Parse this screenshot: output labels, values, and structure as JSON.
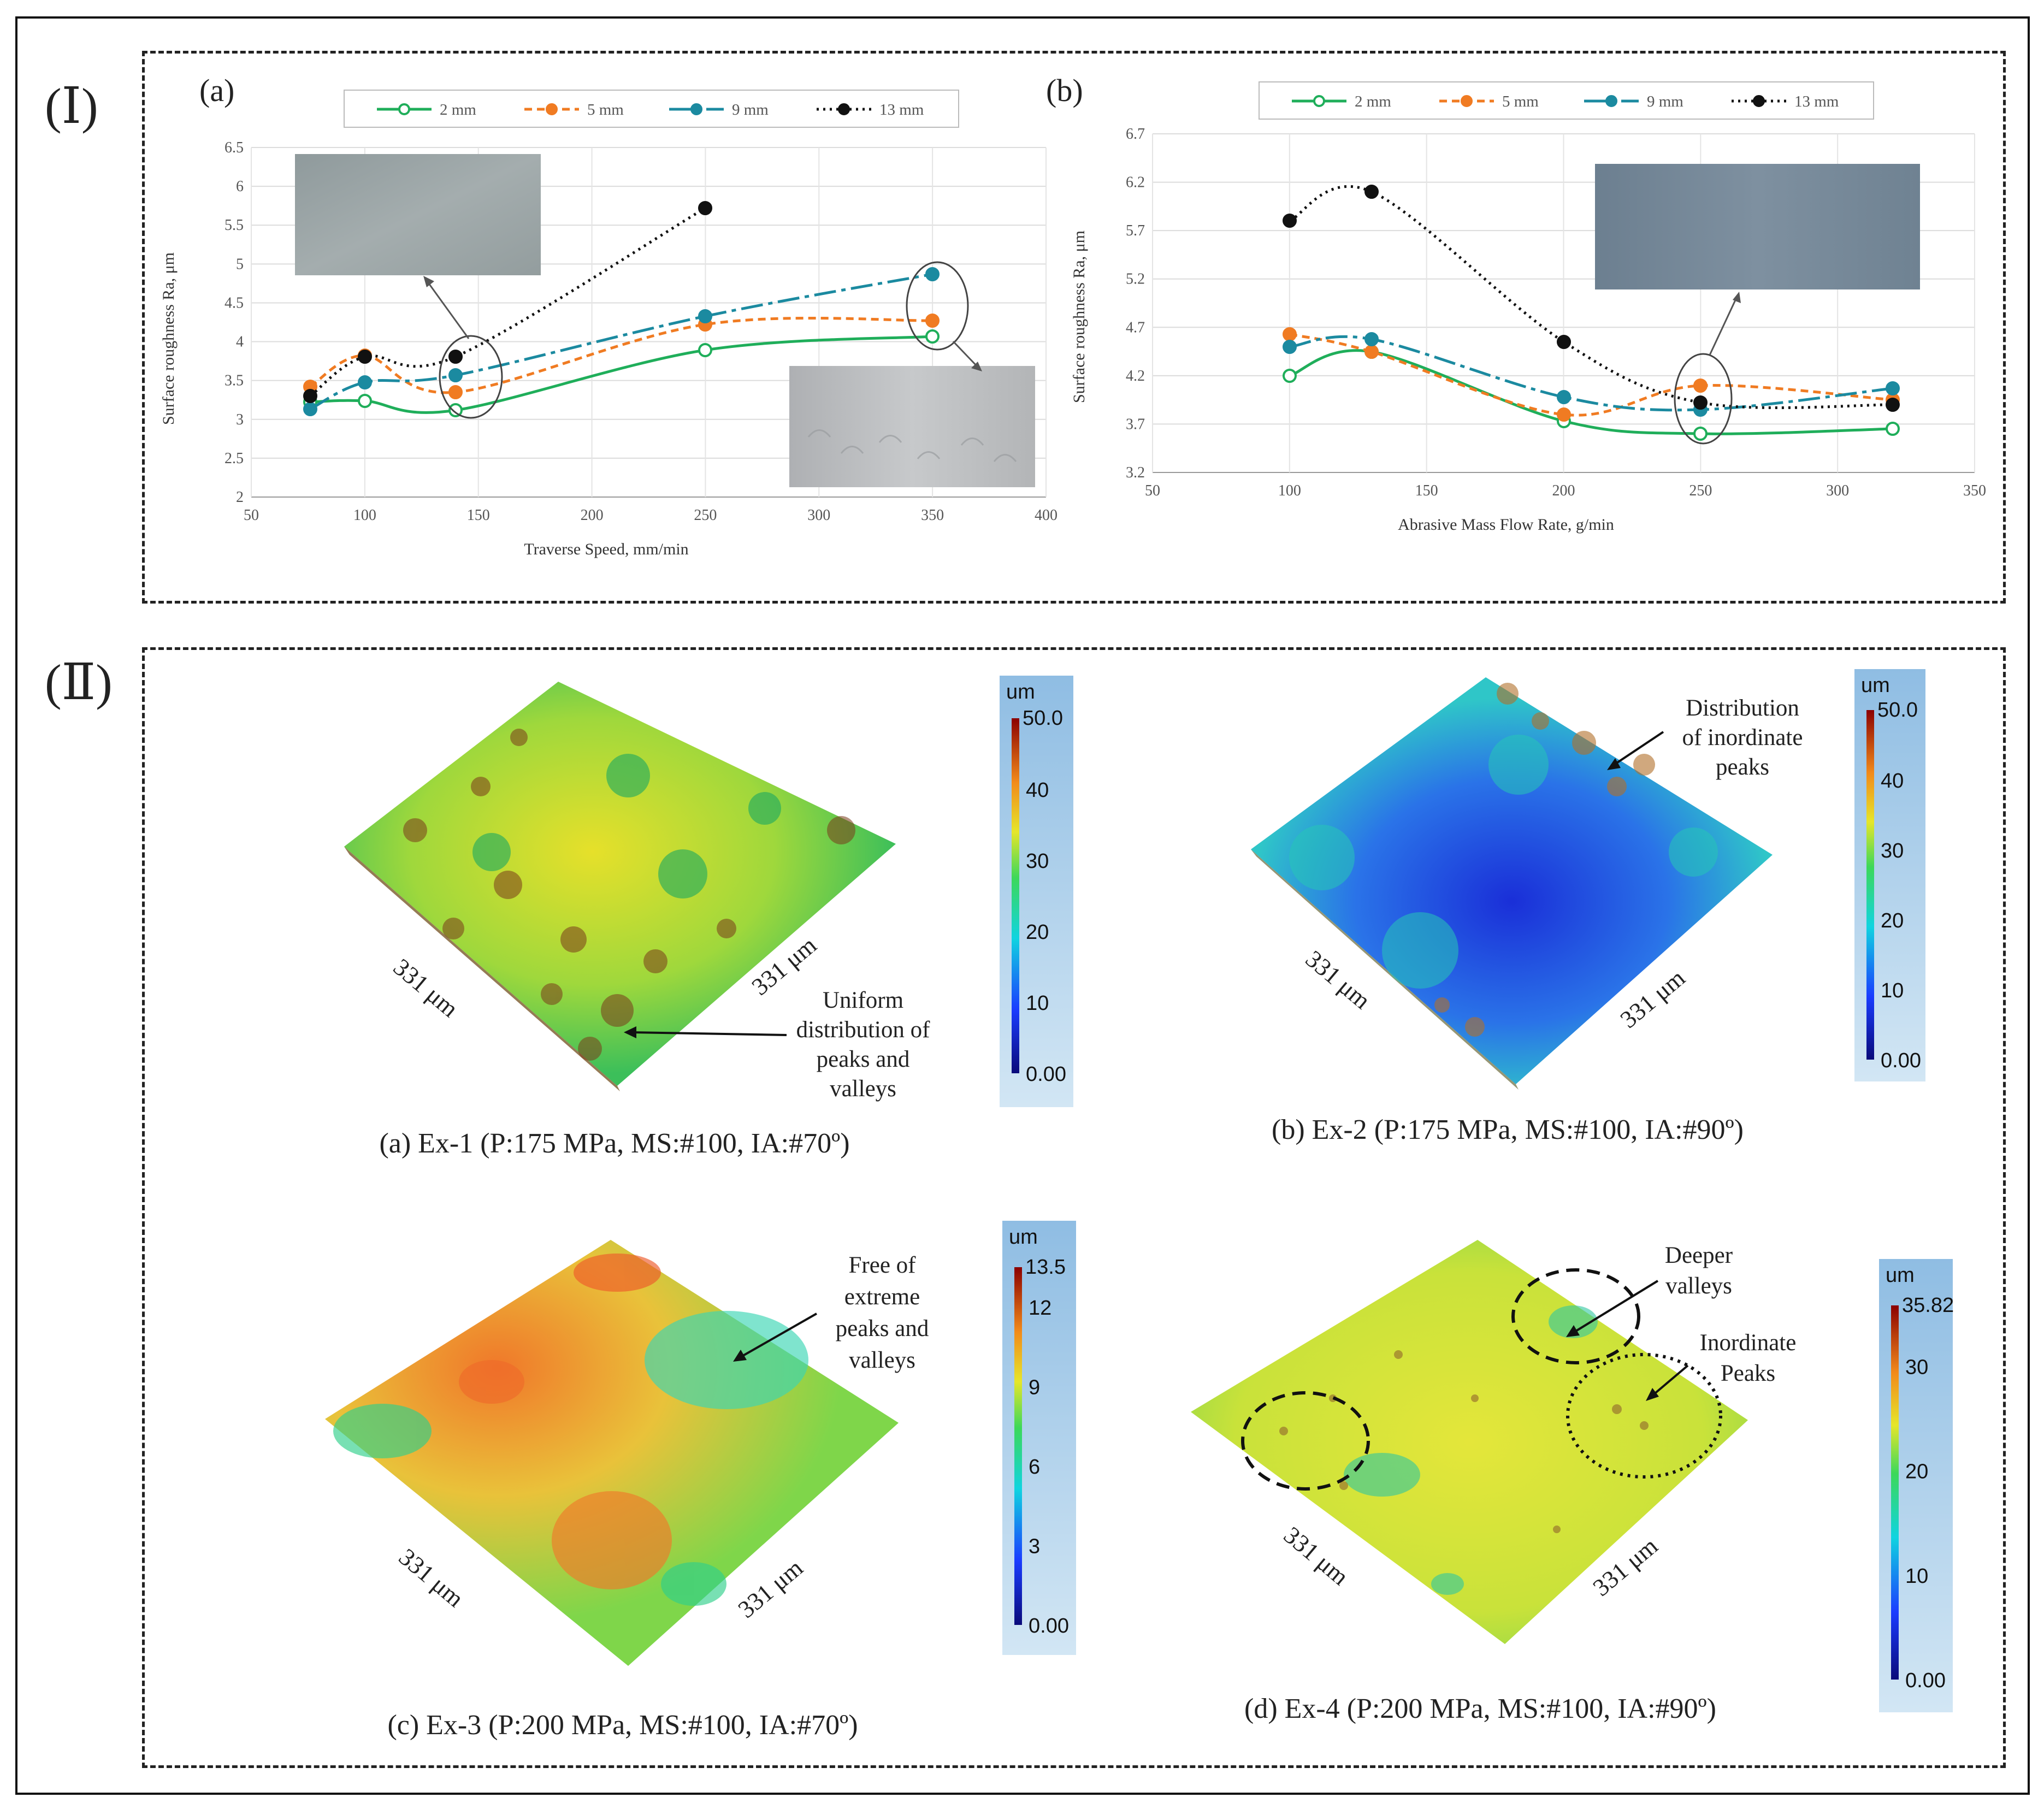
{
  "section_labels": {
    "part1": "(Ⅰ)",
    "part2": "(Ⅱ)"
  },
  "chart_data": [
    {
      "type": "line",
      "panel_label": "(a)",
      "xlabel": "Traverse Speed, mm/min",
      "ylabel": "Surface roughness Ra, μm",
      "xlim": [
        50,
        400
      ],
      "ylim": [
        2,
        6.5
      ],
      "xticks": [
        50,
        100,
        150,
        200,
        250,
        300,
        350,
        400
      ],
      "yticks": [
        2,
        2.5,
        3,
        3.5,
        4,
        4.5,
        5,
        5.5,
        6,
        6.5
      ],
      "grid": true,
      "legend_position": "top",
      "series": [
        {
          "name": "2 mm",
          "color": "#1fae5a",
          "x": [
            76,
            100,
            140,
            250,
            350
          ],
          "y": [
            3.22,
            3.24,
            3.12,
            3.89,
            4.07
          ]
        },
        {
          "name": "5 mm",
          "color": "#f07b22",
          "x": [
            76,
            100,
            140,
            250,
            350
          ],
          "y": [
            3.42,
            3.82,
            3.35,
            4.22,
            4.27
          ]
        },
        {
          "name": "9 mm",
          "color": "#1b8aa0",
          "x": [
            76,
            100,
            140,
            250,
            350
          ],
          "y": [
            3.13,
            3.48,
            3.57,
            4.33,
            4.87
          ]
        },
        {
          "name": "13 mm",
          "color": "#111111",
          "x": [
            76,
            100,
            140,
            250
          ],
          "y": [
            3.3,
            3.81,
            3.81,
            5.72
          ]
        }
      ]
    },
    {
      "type": "line",
      "panel_label": "(b)",
      "xlabel": "Abrasive Mass Flow Rate, g/min",
      "ylabel": "Surface roughness Ra, μm",
      "xlim": [
        50,
        350
      ],
      "ylim": [
        3.2,
        6.7
      ],
      "xticks": [
        50,
        100,
        150,
        200,
        250,
        300,
        350
      ],
      "yticks": [
        3.2,
        3.7,
        4.2,
        4.7,
        5.2,
        5.7,
        6.2,
        6.7
      ],
      "grid": true,
      "legend_position": "top",
      "series": [
        {
          "name": "2 mm",
          "color": "#1fae5a",
          "x": [
            100,
            130,
            200,
            250,
            320
          ],
          "y": [
            4.2,
            4.45,
            3.73,
            3.6,
            3.65
          ]
        },
        {
          "name": "5 mm",
          "color": "#f07b22",
          "x": [
            100,
            130,
            200,
            250,
            320
          ],
          "y": [
            4.63,
            4.45,
            3.8,
            4.1,
            3.95
          ]
        },
        {
          "name": "9 mm",
          "color": "#1b8aa0",
          "x": [
            100,
            130,
            200,
            250,
            320
          ],
          "y": [
            4.5,
            4.58,
            3.98,
            3.85,
            4.07
          ]
        },
        {
          "name": "13 mm",
          "color": "#111111",
          "x": [
            100,
            130,
            200,
            250,
            320
          ],
          "y": [
            5.8,
            6.1,
            4.55,
            3.92,
            3.9
          ]
        }
      ]
    }
  ],
  "surface_maps": [
    {
      "caption": "(a) Ex-1 (P:175 MPa, MS:#100, IA:#70º)",
      "dim_left": "331 μm",
      "dim_right": "331 μm",
      "annotation_lines": [
        "Uniform",
        "distribution of",
        "peaks and",
        "valleys"
      ],
      "colorbar": {
        "unit": "um",
        "max": "50.0",
        "ticks": [
          "40",
          "30",
          "20",
          "10",
          "0.00"
        ]
      }
    },
    {
      "caption": "(b) Ex-2 (P:175 MPa, MS:#100, IA:#90º)",
      "dim_left": "331 μm",
      "dim_right": "331 μm",
      "annotation_lines": [
        "Distribution",
        "of inordinate",
        "peaks"
      ],
      "colorbar": {
        "unit": "um",
        "max": "50.0",
        "ticks": [
          "40",
          "30",
          "20",
          "10",
          "0.00"
        ]
      }
    },
    {
      "caption": "(c) Ex-3 (P:200 MPa, MS:#100, IA:#70º)",
      "dim_left": "331 μm",
      "dim_right": "331 μm",
      "annotation_lines": [
        "Free of",
        "extreme",
        "peaks and",
        "valleys"
      ],
      "colorbar": {
        "unit": "um",
        "max": "13.5",
        "ticks": [
          "12",
          "9",
          "6",
          "3",
          "0.00"
        ]
      }
    },
    {
      "caption": "(d) Ex-4 (P:200 MPa, MS:#100, IA:#90º)",
      "dim_left": "331 μm",
      "dim_right": "331 μm",
      "annotation_deeper": [
        "Deeper",
        "valleys"
      ],
      "annotation_peaks": [
        "Inordinate",
        "Peaks"
      ],
      "colorbar": {
        "unit": "um",
        "max": "35.82",
        "ticks": [
          "30",
          "20",
          "10",
          "0.00"
        ]
      }
    }
  ],
  "colors": {
    "cmap_top": "#8b0000",
    "cmap_bottom": "#0a0a7a",
    "colorbar_bg": "#a9cfea"
  }
}
